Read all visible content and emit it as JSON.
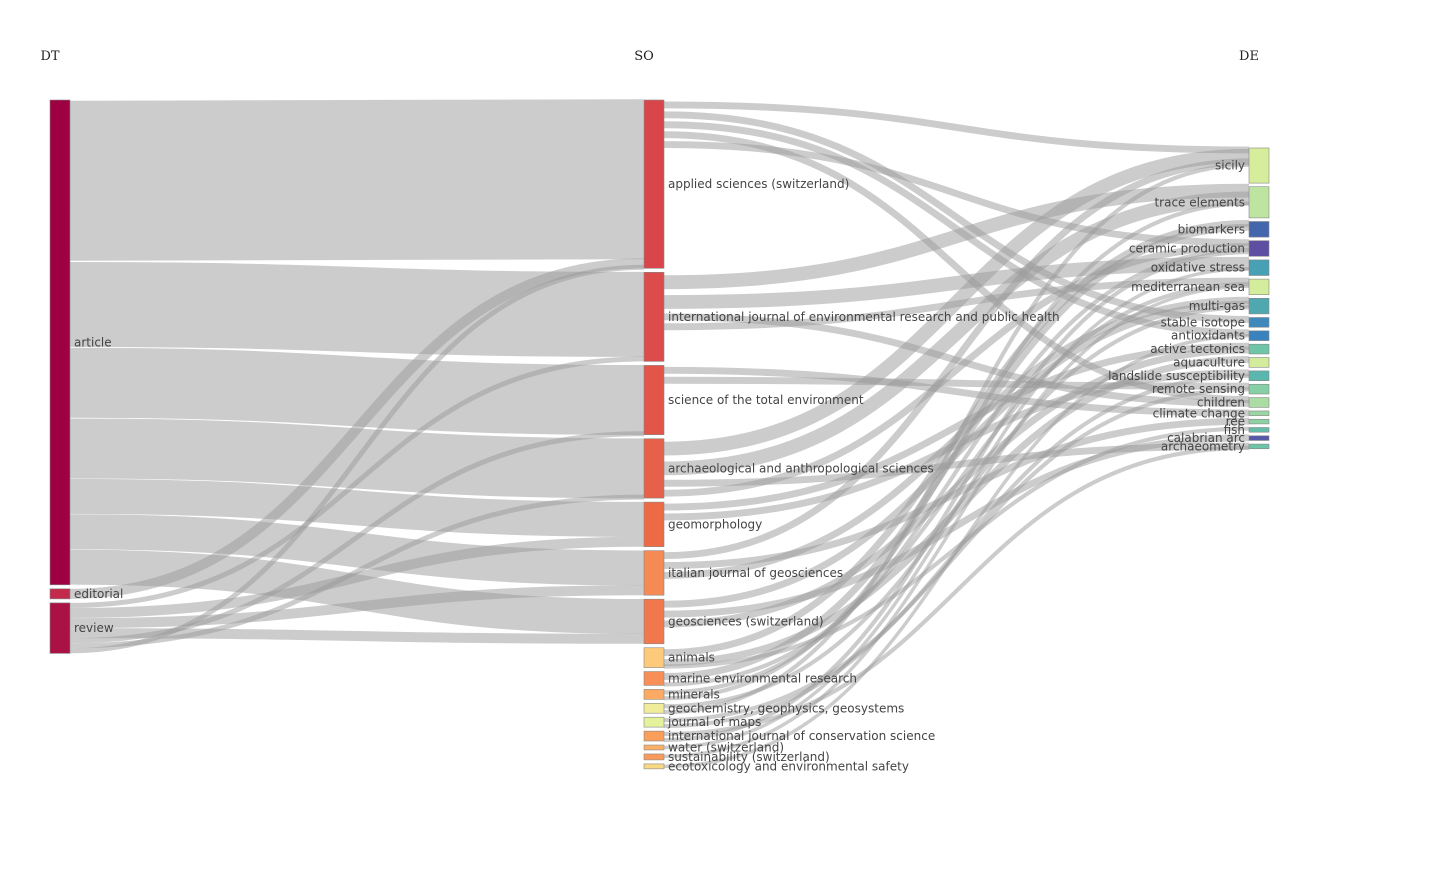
{
  "chart_data": {
    "type": "sankey",
    "columns": [
      {
        "key": "dt",
        "title": "DT"
      },
      {
        "key": "so",
        "title": "SO"
      },
      {
        "key": "de",
        "title": "DE"
      }
    ],
    "nodes": {
      "dt": [
        {
          "id": "article",
          "label": "article",
          "value": 48,
          "color": "#9e0142"
        },
        {
          "id": "editorial",
          "label": "editorial",
          "value": 1,
          "color": "#c2294a"
        },
        {
          "id": "review",
          "label": "review",
          "value": 5,
          "color": "#aa1145"
        }
      ],
      "so": [
        {
          "id": "applied",
          "label": "applied sciences (switzerland)",
          "value": 17,
          "color": "#d8464c"
        },
        {
          "id": "ijerph",
          "label": "international journal of environmental research and public health",
          "value": 9,
          "color": "#dc4c4b"
        },
        {
          "id": "stoten",
          "label": "science of the total environment",
          "value": 7,
          "color": "#e15649"
        },
        {
          "id": "archaeo",
          "label": "archaeological and anthropological sciences",
          "value": 6,
          "color": "#e6604a"
        },
        {
          "id": "geomorph",
          "label": "geomorphology",
          "value": 4.5,
          "color": "#ee6a45"
        },
        {
          "id": "itgeo",
          "label": "italian journal of geosciences",
          "value": 4.5,
          "color": "#f58a55"
        },
        {
          "id": "geosci",
          "label": "geosciences (switzerland)",
          "value": 4.5,
          "color": "#f0784c"
        },
        {
          "id": "animals",
          "label": "animals",
          "value": 2,
          "color": "#fdc97b"
        },
        {
          "id": "marine",
          "label": "marine environmental research",
          "value": 1.4,
          "color": "#f88f57"
        },
        {
          "id": "minerals",
          "label": "minerals",
          "value": 1,
          "color": "#fcaa63"
        },
        {
          "id": "g3",
          "label": "geochemistry, geophysics, geosystems",
          "value": 1,
          "color": "#f1ec9a"
        },
        {
          "id": "maps",
          "label": "journal of maps",
          "value": 1,
          "color": "#e4f29c"
        },
        {
          "id": "ijcs",
          "label": "international journal of conservation science",
          "value": 1,
          "color": "#f99f5b"
        },
        {
          "id": "water",
          "label": "water (switzerland)",
          "value": 0.5,
          "color": "#fbb068"
        },
        {
          "id": "sust",
          "label": "sustainability (switzerland)",
          "value": 0.6,
          "color": "#f99a5a"
        },
        {
          "id": "ecotox",
          "label": "ecotoxicology and environmental safety",
          "value": 0.5,
          "color": "#f7d883"
        }
      ],
      "de": [
        {
          "id": "sicily",
          "label": "sicily",
          "value": 9,
          "color": "#d6ee9b"
        },
        {
          "id": "trace",
          "label": "trace elements",
          "value": 8,
          "color": "#bde4a1"
        },
        {
          "id": "biomarkers",
          "label": "biomarkers",
          "value": 4,
          "color": "#4466ad"
        },
        {
          "id": "ceramic",
          "label": "ceramic production",
          "value": 4,
          "color": "#5e4fa2"
        },
        {
          "id": "oxidative",
          "label": "oxidative stress",
          "value": 4,
          "color": "#47a0b3"
        },
        {
          "id": "medsea",
          "label": "mediterranean sea",
          "value": 4,
          "color": "#d3ed9c"
        },
        {
          "id": "multigas",
          "label": "multi-gas",
          "value": 4,
          "color": "#4fa8b0"
        },
        {
          "id": "stable",
          "label": "stable isotope",
          "value": 2.5,
          "color": "#3f88bb"
        },
        {
          "id": "antiox",
          "label": "antioxidants",
          "value": 2.5,
          "color": "#3a82bd"
        },
        {
          "id": "tectonics",
          "label": "active tectonics",
          "value": 2.5,
          "color": "#70c4a8"
        },
        {
          "id": "aquaculture",
          "label": "aquaculture",
          "value": 2.5,
          "color": "#d2ec9c"
        },
        {
          "id": "landslide",
          "label": "landslide susceptibility",
          "value": 2.5,
          "color": "#5bb6ad"
        },
        {
          "id": "remote",
          "label": "remote sensing",
          "value": 2.5,
          "color": "#87cfa4"
        },
        {
          "id": "children",
          "label": "children",
          "value": 2.5,
          "color": "#aadca4"
        },
        {
          "id": "climate",
          "label": "climate change",
          "value": 1.2,
          "color": "#9bd5a4"
        },
        {
          "id": "ree",
          "label": "ree",
          "value": 1.2,
          "color": "#8dd1a4"
        },
        {
          "id": "fish",
          "label": "fish",
          "value": 1.2,
          "color": "#63bcaa"
        },
        {
          "id": "calabrian",
          "label": "calabrian arc",
          "value": 1.2,
          "color": "#5558a6"
        },
        {
          "id": "archaeometry",
          "label": "archaeometry",
          "value": 1.2,
          "color": "#6dc3a8"
        }
      ]
    },
    "links": [
      {
        "source": "article",
        "target": "applied",
        "value": 16
      },
      {
        "source": "article",
        "target": "ijerph",
        "value": 8.5
      },
      {
        "source": "article",
        "target": "stoten",
        "value": 7
      },
      {
        "source": "article",
        "target": "archaeo",
        "value": 6
      },
      {
        "source": "article",
        "target": "geomorph",
        "value": 3.5
      },
      {
        "source": "article",
        "target": "itgeo",
        "value": 3.5
      },
      {
        "source": "article",
        "target": "geosci",
        "value": 3.5
      },
      {
        "source": "editorial",
        "target": "applied",
        "value": 1
      },
      {
        "source": "review",
        "target": "ijerph",
        "value": 0.5
      },
      {
        "source": "review",
        "target": "geomorph",
        "value": 1
      },
      {
        "source": "review",
        "target": "itgeo",
        "value": 1
      },
      {
        "source": "review",
        "target": "geosci",
        "value": 1
      },
      {
        "source": "review",
        "target": "stoten",
        "value": 0.5
      },
      {
        "source": "review",
        "target": "archaeo",
        "value": 0.5
      },
      {
        "source": "review",
        "target": "applied",
        "value": 0.5
      },
      {
        "source": "applied",
        "target": "sicily",
        "value": 1
      },
      {
        "source": "applied",
        "target": "stable",
        "value": 1
      },
      {
        "source": "applied",
        "target": "antiox",
        "value": 1
      },
      {
        "source": "applied",
        "target": "children",
        "value": 1
      },
      {
        "source": "applied",
        "target": "ceramic",
        "value": 1
      },
      {
        "source": "ijerph",
        "target": "trace",
        "value": 2
      },
      {
        "source": "ijerph",
        "target": "oxidative",
        "value": 2
      },
      {
        "source": "ijerph",
        "target": "children",
        "value": 1
      },
      {
        "source": "ijerph",
        "target": "medsea",
        "value": 1
      },
      {
        "source": "stoten",
        "target": "climate",
        "value": 1
      },
      {
        "source": "stoten",
        "target": "remote",
        "value": 1
      },
      {
        "source": "archaeo",
        "target": "sicily",
        "value": 2
      },
      {
        "source": "archaeo",
        "target": "trace",
        "value": 2
      },
      {
        "source": "archaeo",
        "target": "archaeometry",
        "value": 1
      },
      {
        "source": "archaeo",
        "target": "ceramic",
        "value": 1
      },
      {
        "source": "geomorph",
        "target": "tectonics",
        "value": 1
      },
      {
        "source": "geomorph",
        "target": "landslide",
        "value": 1
      },
      {
        "source": "itgeo",
        "target": "sicily",
        "value": 1
      },
      {
        "source": "itgeo",
        "target": "ree",
        "value": 1
      },
      {
        "source": "itgeo",
        "target": "multigas",
        "value": 1
      },
      {
        "source": "geosci",
        "target": "multigas",
        "value": 1
      },
      {
        "source": "geosci",
        "target": "calabrian",
        "value": 1
      },
      {
        "source": "geosci",
        "target": "tectonics",
        "value": 1
      },
      {
        "source": "animals",
        "target": "biomarkers",
        "value": 1
      },
      {
        "source": "animals",
        "target": "aquaculture",
        "value": 1
      },
      {
        "source": "animals",
        "target": "fish",
        "value": 0.6
      },
      {
        "source": "marine",
        "target": "biomarkers",
        "value": 1
      },
      {
        "source": "marine",
        "target": "medsea",
        "value": 0.6
      },
      {
        "source": "minerals",
        "target": "ceramic",
        "value": 0.6
      },
      {
        "source": "minerals",
        "target": "trace",
        "value": 0.6
      },
      {
        "source": "g3",
        "target": "multigas",
        "value": 0.6
      },
      {
        "source": "g3",
        "target": "sicily",
        "value": 0.6
      },
      {
        "source": "maps",
        "target": "remote",
        "value": 0.6
      },
      {
        "source": "maps",
        "target": "landslide",
        "value": 0.6
      },
      {
        "source": "ijcs",
        "target": "archaeometry",
        "value": 0.6
      },
      {
        "source": "ijcs",
        "target": "ceramic",
        "value": 0.6
      },
      {
        "source": "water",
        "target": "oxidative",
        "value": 0.5
      },
      {
        "source": "sust",
        "target": "medsea",
        "value": 0.5
      },
      {
        "source": "ecotox",
        "target": "antiox",
        "value": 0.5
      }
    ]
  }
}
